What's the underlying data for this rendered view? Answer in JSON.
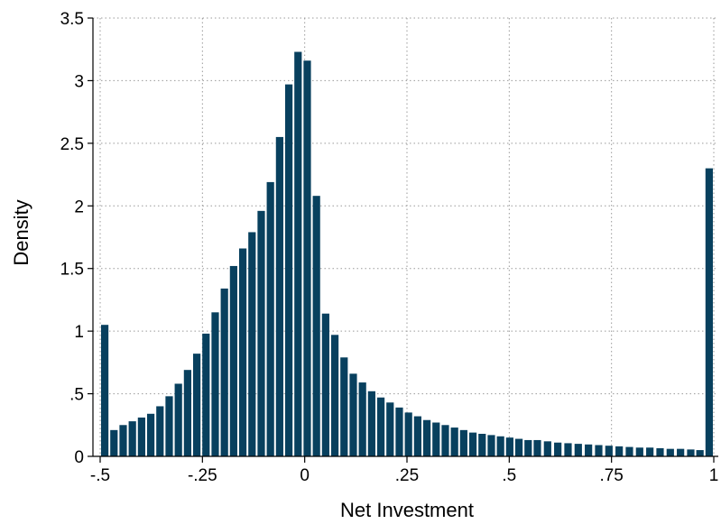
{
  "chart_data": {
    "type": "bar",
    "xlabel": "Net Investment",
    "ylabel": "Density",
    "xlim": [
      -0.5,
      1.0
    ],
    "ylim": [
      0,
      3.5
    ],
    "x_ticks": [
      {
        "value": -0.5,
        "label": "-.5"
      },
      {
        "value": -0.25,
        "label": "-.25"
      },
      {
        "value": 0,
        "label": "0"
      },
      {
        "value": 0.25,
        "label": ".25"
      },
      {
        "value": 0.5,
        "label": ".5"
      },
      {
        "value": 0.75,
        "label": ".75"
      },
      {
        "value": 1,
        "label": "1"
      }
    ],
    "y_ticks": [
      {
        "value": 0,
        "label": "0"
      },
      {
        "value": 0.5,
        "label": ".5"
      },
      {
        "value": 1,
        "label": "1"
      },
      {
        "value": 1.5,
        "label": "1.5"
      },
      {
        "value": 2,
        "label": "2"
      },
      {
        "value": 2.5,
        "label": "2.5"
      },
      {
        "value": 3,
        "label": "3"
      },
      {
        "value": 3.5,
        "label": "3.5"
      }
    ],
    "grid": true,
    "bar_color": "#08405e",
    "bin_width": 0.0225,
    "x": [
      -0.4888,
      -0.4663,
      -0.4438,
      -0.4213,
      -0.3988,
      -0.3763,
      -0.3538,
      -0.3313,
      -0.3088,
      -0.2863,
      -0.2638,
      -0.2413,
      -0.2188,
      -0.1963,
      -0.1738,
      -0.1513,
      -0.1288,
      -0.1063,
      -0.0838,
      -0.0613,
      -0.0388,
      -0.0163,
      0.0062,
      0.0287,
      0.0512,
      0.0737,
      0.0962,
      0.1187,
      0.1412,
      0.1637,
      0.1862,
      0.2087,
      0.2312,
      0.2537,
      0.2762,
      0.2987,
      0.3212,
      0.3437,
      0.3662,
      0.3887,
      0.4112,
      0.4337,
      0.4562,
      0.4787,
      0.5012,
      0.5237,
      0.5462,
      0.5687,
      0.5937,
      0.6187,
      0.6437,
      0.6687,
      0.6937,
      0.7187,
      0.7437,
      0.7687,
      0.7937,
      0.8187,
      0.8437,
      0.8687,
      0.8937,
      0.9187,
      0.9437,
      0.9662,
      0.9887
    ],
    "values": [
      1.05,
      0.21,
      0.25,
      0.28,
      0.31,
      0.34,
      0.4,
      0.48,
      0.58,
      0.69,
      0.82,
      0.98,
      1.15,
      1.34,
      1.52,
      1.66,
      1.79,
      1.96,
      2.19,
      2.55,
      2.97,
      3.23,
      3.16,
      2.08,
      1.14,
      0.97,
      0.79,
      0.66,
      0.59,
      0.52,
      0.47,
      0.43,
      0.39,
      0.35,
      0.32,
      0.29,
      0.27,
      0.25,
      0.23,
      0.21,
      0.19,
      0.18,
      0.17,
      0.16,
      0.15,
      0.14,
      0.13,
      0.13,
      0.12,
      0.11,
      0.105,
      0.1,
      0.095,
      0.09,
      0.085,
      0.08,
      0.075,
      0.07,
      0.07,
      0.065,
      0.06,
      0.06,
      0.055,
      0.05,
      2.3
    ]
  }
}
